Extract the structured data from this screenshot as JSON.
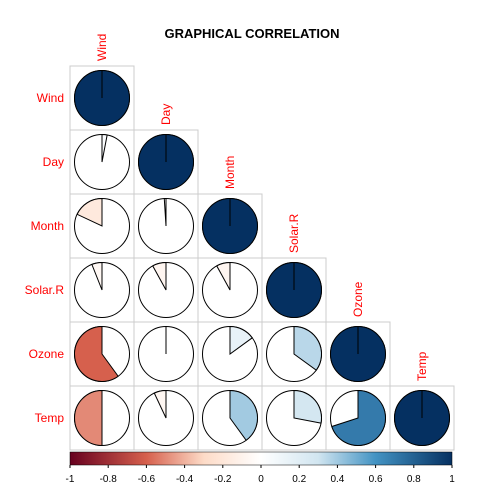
{
  "chart_data": {
    "type": "heatmap",
    "subtype": "correlation-pie-lower-triangle",
    "title": "GRAPHICAL CORRELATION",
    "variables": [
      "Wind",
      "Day",
      "Month",
      "Solar.R",
      "Ozone",
      "Temp"
    ],
    "matrix": [
      [
        1.0,
        0.03,
        -0.18,
        -0.06,
        -0.6,
        -0.5
      ],
      [
        0.03,
        1.0,
        -0.01,
        -0.08,
        0.0,
        -0.07
      ],
      [
        -0.18,
        -0.01,
        1.0,
        -0.08,
        0.15,
        0.4
      ],
      [
        -0.06,
        -0.08,
        -0.08,
        1.0,
        0.35,
        0.28
      ],
      [
        -0.6,
        0.0,
        0.15,
        0.35,
        1.0,
        0.7
      ],
      [
        -0.5,
        -0.07,
        0.4,
        0.28,
        0.7,
        1.0
      ]
    ],
    "colorbar": {
      "ticks": [
        "-1",
        "-0.8",
        "-0.6",
        "-0.4",
        "-0.2",
        "0",
        "0.2",
        "0.4",
        "0.6",
        "0.8",
        "1"
      ],
      "range": [
        -1,
        1
      ],
      "stops": [
        {
          "v": -1.0,
          "color": "#67001F"
        },
        {
          "v": -0.6,
          "color": "#D6604D"
        },
        {
          "v": -0.3,
          "color": "#FDDBC7"
        },
        {
          "v": 0.0,
          "color": "#FFFFFF"
        },
        {
          "v": 0.3,
          "color": "#D1E5F0"
        },
        {
          "v": 0.6,
          "color": "#4393C3"
        },
        {
          "v": 1.0,
          "color": "#053061"
        }
      ]
    },
    "label_color": "#FF0000",
    "grid": true
  }
}
